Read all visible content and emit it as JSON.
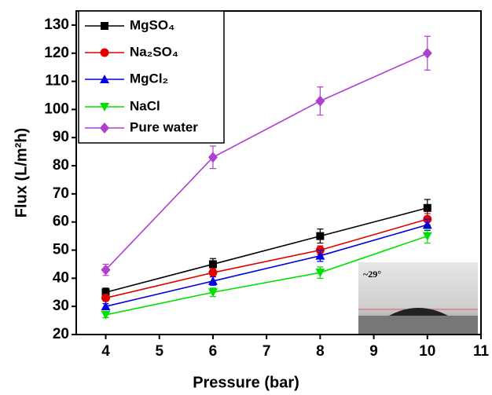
{
  "chart_data": {
    "type": "line",
    "xlabel": "Pressure (bar)",
    "ylabel": "Flux (L/m²h)",
    "inset_annotation": "~29°",
    "x": [
      4,
      6,
      8,
      10
    ],
    "series": [
      {
        "name": "MgSO₄",
        "color": "#000000",
        "marker": "square",
        "values": [
          35,
          45,
          55,
          65
        ],
        "errors": [
          1.5,
          2,
          2.5,
          3
        ]
      },
      {
        "name": "Na₂SO₄",
        "color": "#e00000",
        "marker": "circle",
        "values": [
          33,
          42,
          50,
          61
        ],
        "errors": [
          1,
          1.5,
          1.5,
          2
        ]
      },
      {
        "name": "MgCl₂",
        "color": "#0000e0",
        "marker": "triangle-up",
        "values": [
          30,
          39,
          48,
          59
        ],
        "errors": [
          1,
          1.5,
          2,
          2
        ]
      },
      {
        "name": "NaCl",
        "color": "#00e000",
        "marker": "triangle-down",
        "values": [
          27,
          35,
          42,
          55
        ],
        "errors": [
          1,
          1.5,
          2,
          2.5
        ]
      },
      {
        "name": "Pure water",
        "color": "#b040d0",
        "marker": "diamond",
        "values": [
          43,
          83,
          103,
          120
        ],
        "errors": [
          2,
          4,
          5,
          6
        ]
      }
    ],
    "xlim": [
      3.45,
      11
    ],
    "xticks": [
      4,
      5,
      6,
      7,
      8,
      9,
      10,
      11
    ],
    "ylim": [
      20,
      135
    ],
    "yticks": [
      20,
      30,
      40,
      50,
      60,
      70,
      80,
      90,
      100,
      110,
      120,
      130
    ]
  }
}
